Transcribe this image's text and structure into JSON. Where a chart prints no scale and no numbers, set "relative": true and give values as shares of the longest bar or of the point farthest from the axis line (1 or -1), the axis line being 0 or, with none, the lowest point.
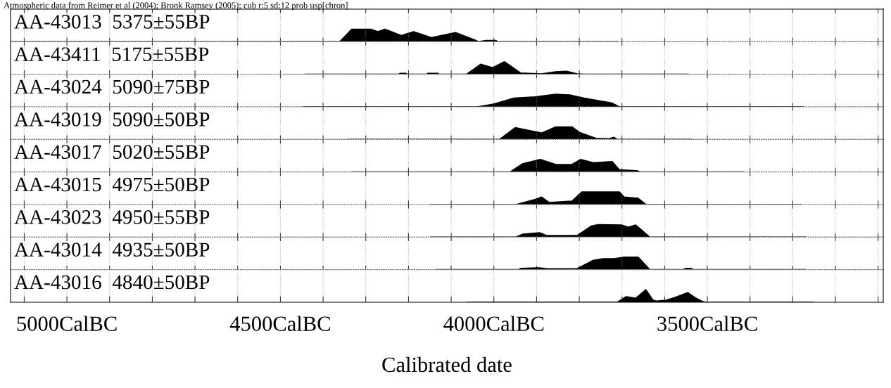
{
  "chart_data": [
    {
      "type": "area",
      "relative": true,
      "title": "AA-43013  5375±55BP",
      "annotations": [
        "Atmospheric data from Reimer et al (2004); Bronk Ramsey (2005); cub r:5 sd:12 prob usp[chron]"
      ],
      "tick_labels": false,
      "grid": "x",
      "xlim": [
        5132,
        3088
      ],
      "xticks": [
        5100,
        5000,
        4900,
        4800,
        4700,
        4600,
        4500,
        4400,
        4300,
        4200,
        4100,
        4000,
        3900,
        3800,
        3700,
        3600,
        3500,
        3400,
        3300,
        3200,
        3100
      ],
      "x": [
        5130,
        4361,
        4333,
        4288,
        4272,
        4255,
        4217,
        4188,
        4146,
        4090,
        4047,
        4036,
        4019,
        3995,
        3991,
        3710
      ],
      "series": [
        {
          "color": "#000000",
          "values": [
            0,
            0,
            1,
            1,
            0.8,
            1,
            0.5,
            0.8,
            0.33,
            0.73,
            0.17,
            0,
            0.1,
            0.1,
            0,
            0
          ]
        }
      ]
    },
    {
      "type": "area",
      "relative": true,
      "title": "AA-43411  5175±55BP",
      "tick_labels": false,
      "grid": "x",
      "xlim": [
        5132,
        3088
      ],
      "xticks": [
        5100,
        5000,
        4900,
        4800,
        4700,
        4600,
        4500,
        4400,
        4300,
        4200,
        4100,
        4000,
        3900,
        3800,
        3700,
        3600,
        3500,
        3400,
        3300,
        3200,
        3100
      ],
      "x": [
        4441,
        4222,
        4220,
        4206,
        4204,
        4157,
        4155,
        4131,
        4129,
        4064,
        4031,
        4003,
        3975,
        3937,
        3909,
        3888,
        3855,
        3830,
        3805,
        3789,
        3545
      ],
      "series": [
        {
          "color": "#000000",
          "values": [
            0,
            0,
            0.07,
            0.07,
            0,
            0,
            0.07,
            0.07,
            0,
            0,
            0.8,
            0.53,
            1,
            0.1,
            0.06,
            0.03,
            0.2,
            0.25,
            0.03,
            0,
            0
          ]
        }
      ]
    },
    {
      "type": "area",
      "relative": true,
      "title": "AA-43024  5090±75BP",
      "tick_labels": false,
      "grid": "x",
      "xlim": [
        5132,
        3088
      ],
      "xticks": [
        5100,
        5000,
        4900,
        4800,
        4700,
        4600,
        4500,
        4400,
        4300,
        4200,
        4100,
        4000,
        3900,
        3800,
        3700,
        3600,
        3500,
        3400,
        3300,
        3200,
        3100
      ],
      "x": [
        4446,
        4039,
        4003,
        3953,
        3904,
        3855,
        3822,
        3789,
        3756,
        3723,
        3706,
        3275
      ],
      "series": [
        {
          "color": "#000000",
          "values": [
            0,
            0,
            0.2,
            0.7,
            0.8,
            1,
            0.95,
            0.7,
            0.5,
            0.3,
            0,
            0
          ]
        }
      ]
    },
    {
      "type": "area",
      "relative": true,
      "title": "AA-43019  5090±50BP",
      "tick_labels": false,
      "grid": "x",
      "xlim": [
        5132,
        3088
      ],
      "xticks": [
        5100,
        5000,
        4900,
        4800,
        4700,
        4600,
        4500,
        4400,
        4300,
        4200,
        4100,
        4000,
        3900,
        3800,
        3700,
        3600,
        3500,
        3400,
        3300,
        3200,
        3100
      ],
      "x": [
        4342,
        3987,
        3950,
        3888,
        3855,
        3817,
        3800,
        3761,
        3731,
        3719,
        3711,
        3537
      ],
      "series": [
        {
          "color": "#000000",
          "values": [
            0,
            0,
            0.94,
            0.51,
            1,
            1,
            0.57,
            0.09,
            0.05,
            0.17,
            0,
            0
          ]
        }
      ]
    },
    {
      "type": "area",
      "relative": true,
      "title": "AA-43017  5020±55BP",
      "tick_labels": false,
      "grid": "x",
      "xlim": [
        5132,
        3088
      ],
      "xticks": [
        5100,
        5000,
        4900,
        4800,
        4700,
        4600,
        4500,
        4400,
        4300,
        4200,
        4100,
        4000,
        3900,
        3800,
        3700,
        3600,
        3500,
        3400,
        3300,
        3200,
        3100
      ],
      "x": [
        4331,
        3962,
        3932,
        3891,
        3855,
        3817,
        3797,
        3767,
        3723,
        3706,
        3665,
        3657,
        3415
      ],
      "series": [
        {
          "color": "#000000",
          "values": [
            0,
            0,
            0.67,
            1,
            0.6,
            0.6,
            1,
            0.73,
            0.83,
            0.17,
            0.1,
            0,
            0
          ]
        }
      ]
    },
    {
      "type": "area",
      "relative": true,
      "title": "AA-43015  4975±50BP",
      "tick_labels": false,
      "grid": "x",
      "xlim": [
        5132,
        3088
      ],
      "xticks": [
        5100,
        5000,
        4900,
        4800,
        4700,
        4600,
        4500,
        4400,
        4300,
        4200,
        4100,
        4000,
        3900,
        3800,
        3700,
        3600,
        3500,
        3400,
        3300,
        3200,
        3100
      ],
      "x": [
        4148,
        3948,
        3904,
        3888,
        3871,
        3817,
        3794,
        3706,
        3695,
        3662,
        3644,
        3280
      ],
      "series": [
        {
          "color": "#000000",
          "values": [
            0,
            0,
            0.4,
            0.6,
            0.17,
            0.27,
            1,
            1,
            0.6,
            0.5,
            0,
            0
          ]
        }
      ]
    },
    {
      "type": "area",
      "relative": true,
      "title": "AA-43023  4950±55BP",
      "tick_labels": false,
      "grid": "x",
      "xlim": [
        5132,
        3088
      ],
      "xticks": [
        5100,
        5000,
        4900,
        4800,
        4700,
        4600,
        4500,
        4400,
        4300,
        4200,
        4100,
        4000,
        3900,
        3800,
        3700,
        3600,
        3500,
        3400,
        3300,
        3200,
        3100
      ],
      "x": [
        4148,
        3948,
        3932,
        3893,
        3876,
        3805,
        3772,
        3756,
        3701,
        3685,
        3668,
        3657,
        3635,
        3270
      ],
      "series": [
        {
          "color": "#000000",
          "values": [
            0,
            0,
            0.24,
            0.35,
            0.12,
            0.12,
            0.88,
            1,
            0.97,
            0.79,
            0.97,
            0.65,
            0,
            0
          ]
        }
      ]
    },
    {
      "type": "area",
      "relative": true,
      "title": "AA-43014  4935±50BP",
      "tick_labels": false,
      "grid": "x",
      "xlim": [
        5132,
        3088
      ],
      "xticks": [
        5100,
        5000,
        4900,
        4800,
        4700,
        4600,
        4500,
        4400,
        4300,
        4200,
        4100,
        4000,
        3900,
        3800,
        3700,
        3600,
        3500,
        3400,
        3300,
        3200,
        3100
      ],
      "x": [
        4135,
        3942,
        3937,
        3893,
        3876,
        3805,
        3767,
        3744,
        3718,
        3695,
        3662,
        3635,
        3558,
        3550,
        3538,
        3533,
        3270
      ],
      "series": [
        {
          "color": "#000000",
          "values": [
            0,
            0,
            0.1,
            0.15,
            0.08,
            0.08,
            0.75,
            0.88,
            0.88,
            1,
            1,
            0,
            0,
            0.1,
            0.1,
            0,
            0
          ]
        }
      ]
    },
    {
      "type": "area",
      "relative": true,
      "title": "AA-43016  4840±50BP",
      "xlabel": "Calibrated date",
      "tick_labels": "x",
      "grid": "x",
      "xlim": [
        5132,
        3088
      ],
      "xticks": [
        {
          "value": 5100,
          "label": null
        },
        {
          "value": 5000,
          "label": "5000CalBC"
        },
        {
          "value": 4900,
          "label": null
        },
        {
          "value": 4800,
          "label": null
        },
        {
          "value": 4700,
          "label": null
        },
        {
          "value": 4600,
          "label": null
        },
        {
          "value": 4500,
          "label": "4500CalBC"
        },
        {
          "value": 4400,
          "label": null
        },
        {
          "value": 4300,
          "label": null
        },
        {
          "value": 4200,
          "label": null
        },
        {
          "value": 4100,
          "label": null
        },
        {
          "value": 4000,
          "label": "4000CalBC"
        },
        {
          "value": 3900,
          "label": null
        },
        {
          "value": 3800,
          "label": null
        },
        {
          "value": 3700,
          "label": null
        },
        {
          "value": 3600,
          "label": null
        },
        {
          "value": 3500,
          "label": "3500CalBC"
        },
        {
          "value": 3400,
          "label": null
        },
        {
          "value": 3300,
          "label": null
        },
        {
          "value": 3200,
          "label": null
        },
        {
          "value": 3100,
          "label": null
        }
      ],
      "x": [
        4062,
        3711,
        3690,
        3668,
        3644,
        3627,
        3619,
        3596,
        3574,
        3546,
        3530,
        3513,
        3504,
        3250
      ],
      "series": [
        {
          "color": "#000000",
          "values": [
            0,
            0,
            0.45,
            0.32,
            1,
            0.16,
            0.1,
            0.16,
            0.4,
            0.77,
            0.4,
            0.08,
            0,
            0
          ]
        }
      ]
    }
  ]
}
